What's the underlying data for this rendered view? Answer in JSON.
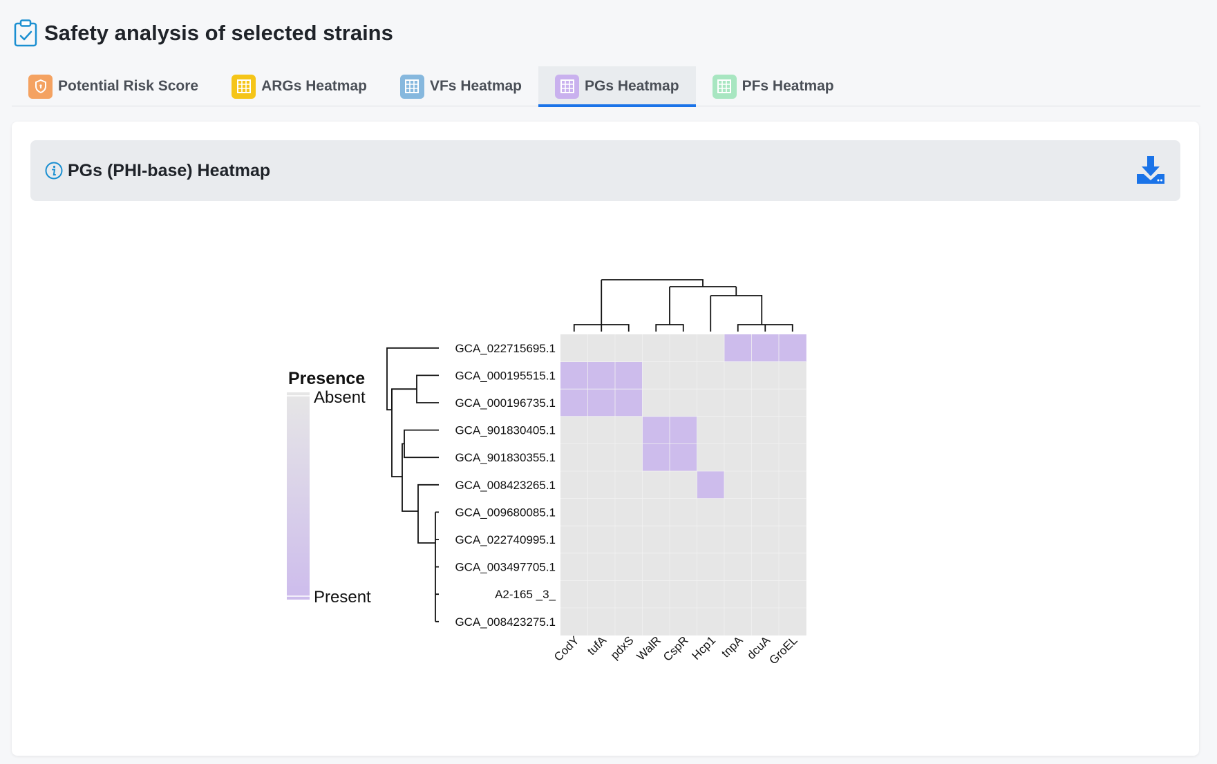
{
  "page": {
    "title": "Safety analysis of selected strains"
  },
  "tabs": [
    {
      "label": "Potential Risk Score",
      "icon": "shield-icon",
      "color": "#f4a261",
      "active": false
    },
    {
      "label": "ARGs Heatmap",
      "icon": "grid-icon",
      "color": "#f5c518",
      "active": false
    },
    {
      "label": "VFs Heatmap",
      "icon": "grid-icon",
      "color": "#86b8de",
      "active": false
    },
    {
      "label": "PGs Heatmap",
      "icon": "grid-icon",
      "color": "#c9b1ee",
      "active": true
    },
    {
      "label": "PFs Heatmap",
      "icon": "grid-icon",
      "color": "#a8e6c1",
      "active": false
    }
  ],
  "panel": {
    "title": "PGs (PHI-base) Heatmap",
    "download_icon": "download-icon",
    "accent": "#1a73e8"
  },
  "chart_data": {
    "type": "heatmap",
    "legend": {
      "title": "Presence",
      "low_label": "Absent",
      "high_label": "Present",
      "low_color": "#e6e6e6",
      "high_color": "#cdbcec"
    },
    "rows": [
      "GCA_022715695.1",
      "GCA_000195515.1",
      "GCA_000196735.1",
      "GCA_901830405.1",
      "GCA_901830355.1",
      "GCA_008423265.1",
      "GCA_009680085.1",
      "GCA_022740995.1",
      "GCA_003497705.1",
      "A2-165 _3_",
      "GCA_008423275.1"
    ],
    "columns": [
      "CodY",
      "tufA",
      "pdxS",
      "WalR",
      "CspR",
      "Hcp1",
      "tnpA",
      "dcuA",
      "GroEL"
    ],
    "values": [
      [
        0,
        0,
        0,
        0,
        0,
        0,
        1,
        1,
        1
      ],
      [
        1,
        1,
        1,
        0,
        0,
        0,
        0,
        0,
        0
      ],
      [
        1,
        1,
        1,
        0,
        0,
        0,
        0,
        0,
        0
      ],
      [
        0,
        0,
        0,
        1,
        1,
        0,
        0,
        0,
        0
      ],
      [
        0,
        0,
        0,
        1,
        1,
        0,
        0,
        0,
        0
      ],
      [
        0,
        0,
        0,
        0,
        0,
        1,
        0,
        0,
        0
      ],
      [
        0,
        0,
        0,
        0,
        0,
        0,
        0,
        0,
        0
      ],
      [
        0,
        0,
        0,
        0,
        0,
        0,
        0,
        0,
        0
      ],
      [
        0,
        0,
        0,
        0,
        0,
        0,
        0,
        0,
        0
      ],
      [
        0,
        0,
        0,
        0,
        0,
        0,
        0,
        0,
        0
      ],
      [
        0,
        0,
        0,
        0,
        0,
        0,
        0,
        0,
        0
      ]
    ],
    "row_dendrogram": true,
    "column_dendrogram": true
  }
}
